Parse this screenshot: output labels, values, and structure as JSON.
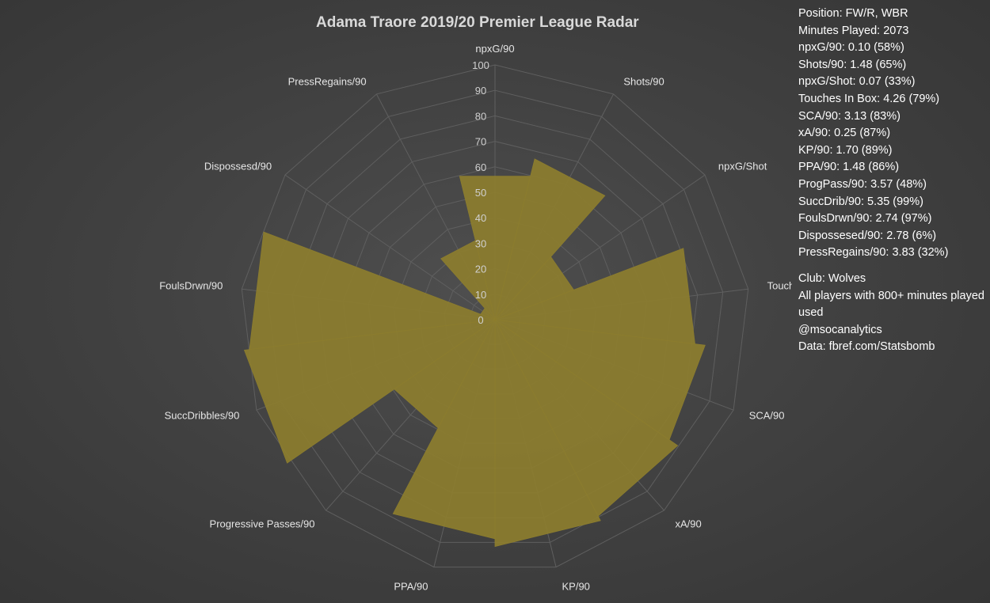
{
  "chart_data": {
    "type": "radar",
    "title": "Adama Traore 2019/20 Premier League Radar",
    "rlim": [
      0,
      100
    ],
    "radial_ticks": [
      0,
      10,
      20,
      30,
      40,
      50,
      60,
      70,
      80,
      90,
      100
    ],
    "categories": [
      "npxG/90",
      "Shots/90",
      "npxG/Shot",
      "Touches In Box",
      "SCA/90",
      "xA/90",
      "KP/90",
      "PPA/90",
      "Progressive Passes/90",
      "SuccDribbles/90",
      "FoulsDrwn/90",
      "Dispossesd/90",
      "PressRegains/90"
    ],
    "series": [
      {
        "values": [
          58,
          65,
          33,
          79,
          83,
          87,
          89,
          86,
          48,
          99,
          97,
          6,
          32
        ],
        "color": "#8c7d2e"
      }
    ],
    "grid": true,
    "fill_color": "#8c7d2e",
    "grid_color": "#5f5f5f"
  },
  "info": {
    "lines": [
      "Position: FW/R, WBR",
      "Minutes Played: 2073",
      "npxG/90: 0.10 (58%)",
      "Shots/90: 1.48 (65%)",
      "npxG/Shot: 0.07 (33%)",
      "Touches In Box: 4.26 (79%)",
      "SCA/90: 3.13 (83%)",
      "xA/90: 0.25 (87%)",
      "KP/90: 1.70 (89%)",
      "PPA/90: 1.48 (86%)",
      "ProgPass/90: 3.57 (48%)",
      "SuccDrib/90: 5.35 (99%)",
      "FoulsDrwn/90: 2.74 (97%)",
      "Dispossesed/90: 2.78 (6%)",
      "PressRegains/90: 3.83 (32%)"
    ],
    "club": "Club: Wolves",
    "note": "All players with 800+ minutes played used",
    "handle": "@msocanalytics",
    "source": "Data: fbref.com/Statsbomb"
  }
}
